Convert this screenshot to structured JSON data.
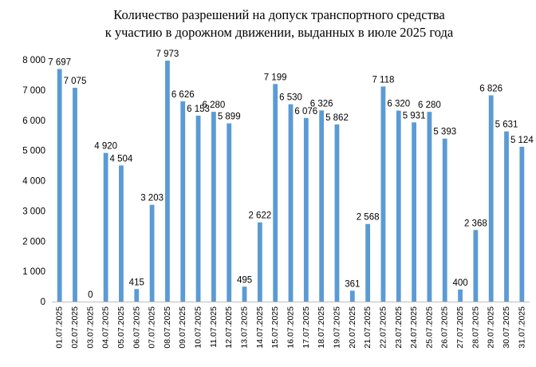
{
  "chart_data": {
    "type": "bar",
    "title_lines": [
      "Количество разрешений на допуск транспортного средства",
      "к участию в дорожном движении, выданных в июле 2025 года"
    ],
    "categories": [
      "01.07.2025",
      "02.07.2025",
      "03.07.2025",
      "04.07.2025",
      "05.07.2025",
      "06.07.2025",
      "07.07.2025",
      "08.07.2025",
      "09.07.2025",
      "10.07.2025",
      "11.07.2025",
      "12.07.2025",
      "13.07.2025",
      "14.07.2025",
      "15.07.2025",
      "16.07.2025",
      "17.07.2025",
      "18.07.2025",
      "19.07.2025",
      "20.07.2025",
      "21.07.2025",
      "22.07.2025",
      "23.07.2025",
      "24.07.2025",
      "25.07.2025",
      "26.07.2025",
      "27.07.2025",
      "28.07.2025",
      "29.07.2025",
      "30.07.2025",
      "31.07.2025"
    ],
    "values": [
      7697,
      7075,
      0,
      4920,
      4504,
      415,
      3203,
      7973,
      6626,
      6153,
      6280,
      5899,
      495,
      2622,
      7199,
      6530,
      6076,
      6326,
      5862,
      361,
      2568,
      7118,
      6320,
      5931,
      6280,
      5393,
      400,
      2368,
      6826,
      5631,
      5124
    ],
    "data_labels": [
      "7 697",
      "7 075",
      "0",
      "4 920",
      "4 504",
      "415",
      "3 203",
      "7 973",
      "6 626",
      "6 153",
      "6 280",
      "5 899",
      "495",
      "2 622",
      "7 199",
      "6 530",
      "6 076",
      "6 326",
      "5 862",
      "361",
      "2 568",
      "7 118",
      "6 320",
      "5 931",
      "6 280",
      "5 393",
      "400",
      "2 368",
      "6 826",
      "5 631",
      "5 124"
    ],
    "y_ticks": [
      0,
      1000,
      2000,
      3000,
      4000,
      5000,
      6000,
      7000,
      8000
    ],
    "y_tick_labels": [
      "0",
      "1 000",
      "2 000",
      "3 000",
      "4 000",
      "5 000",
      "6 000",
      "7 000",
      "8 000"
    ],
    "ylim": [
      0,
      8000
    ],
    "grid": false,
    "legend": "none",
    "bar_color": "#5B9BD5"
  }
}
